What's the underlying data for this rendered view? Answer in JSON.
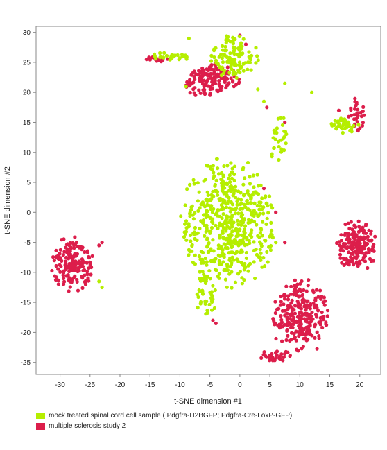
{
  "chart_data": {
    "type": "scatter",
    "title": "",
    "xlabel": "t-SNE dimension #1",
    "ylabel": "t-SNE dimension #2",
    "xlim": [
      -34,
      23.5
    ],
    "ylim": [
      -27,
      31
    ],
    "x_ticks": [
      -30,
      -25,
      -20,
      -15,
      -10,
      -5,
      0,
      5,
      10,
      15,
      20
    ],
    "y_ticks": [
      -25,
      -20,
      -15,
      -10,
      -5,
      0,
      5,
      10,
      15,
      20,
      25,
      30
    ],
    "grid": false,
    "legend_position": "bottom-left",
    "series": [
      {
        "name": "mock treated spinal cord cell sample ( Pdgfra-H2BGFP; Pdgfra-Cre-LoxP-GFP)",
        "color": "#b5ee00",
        "clusters": [
          {
            "center": [
              -2,
              -2
            ],
            "spread": [
              4.2,
              6.0
            ],
            "count": 560
          },
          {
            "center": [
              -5.5,
              -14
            ],
            "spread": [
              0.9,
              2.5
            ],
            "count": 40
          },
          {
            "center": [
              -1,
              26
            ],
            "spread": [
              2.2,
              2.0
            ],
            "count": 110
          },
          {
            "center": [
              -11.5,
              26
            ],
            "spread": [
              2.0,
              0.35
            ],
            "count": 30
          },
          {
            "center": [
              6.5,
              12
            ],
            "spread": [
              0.8,
              2.5
            ],
            "count": 28
          },
          {
            "center": [
              17.5,
              14.5
            ],
            "spread": [
              1.3,
              0.7
            ],
            "count": 38
          }
        ],
        "points": [
          [
            -8.5,
            29
          ],
          [
            7.5,
            21.5
          ],
          [
            12,
            20
          ],
          [
            4,
            18.5
          ],
          [
            -9,
            21
          ],
          [
            3,
            20.5
          ],
          [
            3.5,
            4.5
          ],
          [
            4.5,
            1.5
          ],
          [
            -23,
            -12.5
          ],
          [
            -23.5,
            -11.5
          ],
          [
            -3,
            5.5
          ],
          [
            6,
            -5
          ]
        ]
      },
      {
        "name": "multiple sclerosis study 2",
        "color": "#dc1e4b",
        "clusters": [
          {
            "center": [
              -28,
              -8.5
            ],
            "spread": [
              1.9,
              2.5
            ],
            "count": 170
          },
          {
            "center": [
              -5,
              22
            ],
            "spread": [
              2.6,
              1.5
            ],
            "count": 140
          },
          {
            "center": [
              -14,
              25.5
            ],
            "spread": [
              1.1,
              0.3
            ],
            "count": 22
          },
          {
            "center": [
              19.5,
              -5.5
            ],
            "spread": [
              1.8,
              2.4
            ],
            "count": 180
          },
          {
            "center": [
              10,
              -17.5
            ],
            "spread": [
              2.5,
              3.5
            ],
            "count": 260
          },
          {
            "center": [
              6,
              -24
            ],
            "spread": [
              1.4,
              0.6
            ],
            "count": 30
          },
          {
            "center": [
              19.5,
              16.5
            ],
            "spread": [
              0.8,
              1.7
            ],
            "count": 30
          }
        ],
        "points": [
          [
            -4.5,
            -18
          ],
          [
            -4,
            -18.5
          ],
          [
            1,
            28
          ],
          [
            0,
            29.5
          ],
          [
            6,
            0
          ],
          [
            4,
            4
          ],
          [
            7.5,
            -5
          ],
          [
            4.5,
            17.5
          ],
          [
            7.5,
            15
          ],
          [
            16.5,
            17
          ],
          [
            -23.5,
            -5.5
          ],
          [
            -23,
            -5
          ]
        ]
      }
    ]
  }
}
